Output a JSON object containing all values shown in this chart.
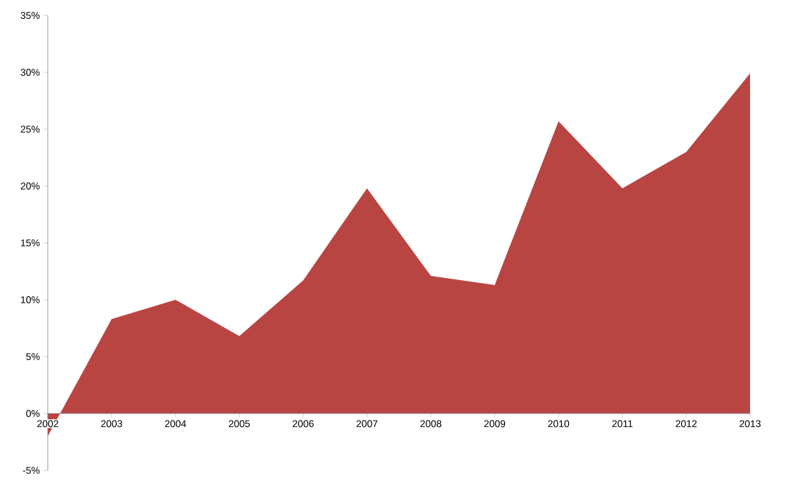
{
  "chart_data": {
    "type": "area",
    "categories": [
      "2002",
      "2003",
      "2004",
      "2005",
      "2006",
      "2007",
      "2008",
      "2009",
      "2010",
      "2011",
      "2012",
      "2013"
    ],
    "series": [
      {
        "color": "#b94543",
        "values": [
          -2,
          8.3,
          10,
          6.8,
          11.7,
          19.8,
          12.1,
          11.3,
          25.7,
          19.8,
          23,
          29.9
        ]
      }
    ],
    "ylim": [
      -5,
      35
    ],
    "yticks": [
      {
        "value": -5,
        "label": "-5%"
      },
      {
        "value": 0,
        "label": "0%"
      },
      {
        "value": 5,
        "label": "5%"
      },
      {
        "value": 10,
        "label": "10%"
      },
      {
        "value": 15,
        "label": "15%"
      },
      {
        "value": 20,
        "label": "20%"
      },
      {
        "value": 25,
        "label": "25%"
      },
      {
        "value": 30,
        "label": "30%"
      },
      {
        "value": 35,
        "label": "35%"
      }
    ],
    "grid": false
  }
}
